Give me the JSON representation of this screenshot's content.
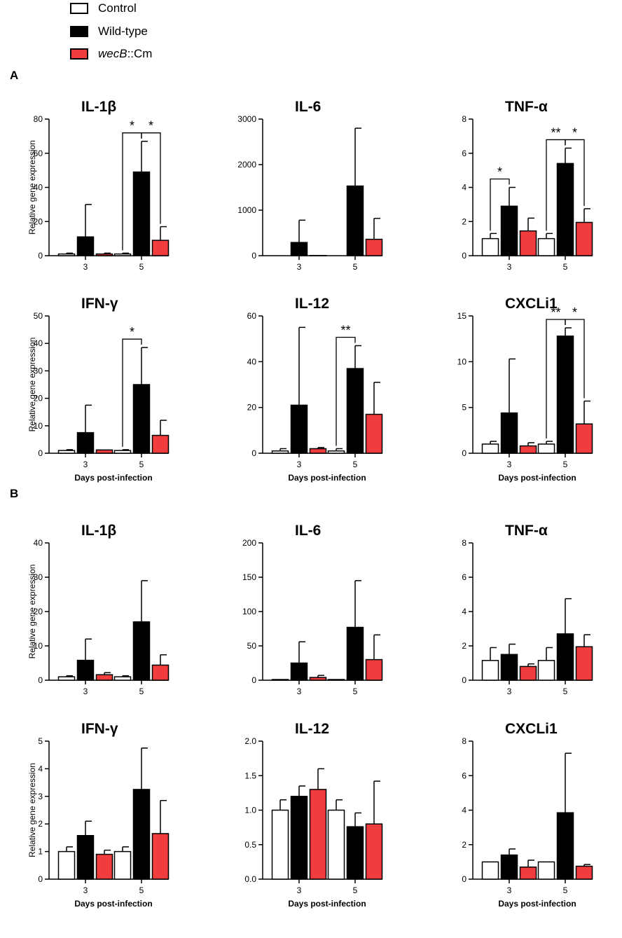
{
  "figure": {
    "legend": {
      "items": [
        {
          "label": "Control",
          "color": "#ffffff"
        },
        {
          "label": "Wild-type",
          "color": "#000000"
        },
        {
          "label_italic": "wecB",
          "label_rest": "::Cm",
          "color": "#f03c3c"
        }
      ]
    },
    "panels": {
      "a": "A",
      "b": "B"
    },
    "ylabel": "Relative gene expression",
    "xlabel": "Days post-infection",
    "groups": [
      "3",
      "5"
    ],
    "series_names": [
      "Control",
      "Wild-type",
      "wecB::Cm"
    ],
    "series_colors": [
      "#ffffff",
      "#000000",
      "#f03c3c"
    ]
  },
  "chart_data": [
    {
      "type": "bar",
      "panel": "A",
      "title": "IL-1β",
      "categories": [
        "3",
        "5"
      ],
      "series": [
        {
          "name": "Control",
          "values": [
            1,
            1
          ],
          "err": [
            0.5,
            0.5
          ]
        },
        {
          "name": "Wild-type",
          "values": [
            11,
            49
          ],
          "err": [
            19,
            18
          ]
        },
        {
          "name": "wecB::Cm",
          "values": [
            1,
            9
          ],
          "err": [
            0.5,
            8
          ]
        }
      ],
      "ylim": [
        0,
        80
      ],
      "yticks": [
        "0",
        "20",
        "40",
        "60",
        "80"
      ],
      "ylabel": "Relative gene expression",
      "xlabel": "",
      "significance": [
        {
          "group": 1,
          "pair": [
            0,
            1
          ],
          "label": "*"
        },
        {
          "group": 1,
          "pair": [
            1,
            2
          ],
          "label": "*"
        }
      ]
    },
    {
      "type": "bar",
      "panel": "A",
      "title": "IL-6",
      "categories": [
        "3",
        "5"
      ],
      "series": [
        {
          "name": "Control",
          "values": [
            0,
            0
          ],
          "err": [
            0,
            0
          ]
        },
        {
          "name": "Wild-type",
          "values": [
            290,
            1530
          ],
          "err": [
            490,
            1270
          ]
        },
        {
          "name": "wecB::Cm",
          "values": [
            5,
            360
          ],
          "err": [
            0,
            460
          ]
        }
      ],
      "ylim": [
        0,
        3000
      ],
      "yticks": [
        "0",
        "1000",
        "2000",
        "3000"
      ],
      "ylabel": "",
      "xlabel": "",
      "significance": []
    },
    {
      "type": "bar",
      "panel": "A",
      "title": "TNF-α",
      "categories": [
        "3",
        "5"
      ],
      "series": [
        {
          "name": "Control",
          "values": [
            1,
            1
          ],
          "err": [
            0.3,
            0.3
          ]
        },
        {
          "name": "Wild-type",
          "values": [
            2.9,
            5.4
          ],
          "err": [
            1.1,
            0.9
          ]
        },
        {
          "name": "wecB::Cm",
          "values": [
            1.45,
            1.95
          ],
          "err": [
            0.75,
            0.8
          ]
        }
      ],
      "ylim": [
        0,
        8
      ],
      "yticks": [
        "0",
        "2",
        "4",
        "6",
        "8"
      ],
      "ylabel": "",
      "xlabel": "",
      "significance": [
        {
          "group": 0,
          "pair": [
            0,
            1
          ],
          "label": "*"
        },
        {
          "group": 1,
          "pair": [
            0,
            1
          ],
          "label": "**"
        },
        {
          "group": 1,
          "pair": [
            1,
            2
          ],
          "label": "*"
        }
      ]
    },
    {
      "type": "bar",
      "panel": "A",
      "title": "IFN-γ",
      "categories": [
        "3",
        "5"
      ],
      "series": [
        {
          "name": "Control",
          "values": [
            1,
            1
          ],
          "err": [
            0.3,
            0.3
          ]
        },
        {
          "name": "Wild-type",
          "values": [
            7.5,
            25
          ],
          "err": [
            10,
            13.5
          ]
        },
        {
          "name": "wecB::Cm",
          "values": [
            1.2,
            6.5
          ],
          "err": [
            0,
            5.5
          ]
        }
      ],
      "ylim": [
        0,
        50
      ],
      "yticks": [
        "0",
        "10",
        "20",
        "30",
        "40",
        "50"
      ],
      "ylabel": "Relative gene expression",
      "xlabel": "Days post-infection",
      "significance": [
        {
          "group": 1,
          "pair": [
            0,
            1
          ],
          "label": "*"
        }
      ]
    },
    {
      "type": "bar",
      "panel": "A",
      "title": "IL-12",
      "categories": [
        "3",
        "5"
      ],
      "series": [
        {
          "name": "Control",
          "values": [
            1,
            1
          ],
          "err": [
            1,
            1
          ]
        },
        {
          "name": "Wild-type",
          "values": [
            21,
            37
          ],
          "err": [
            34,
            10
          ]
        },
        {
          "name": "wecB::Cm",
          "values": [
            2,
            17
          ],
          "err": [
            0.5,
            14
          ]
        }
      ],
      "ylim": [
        0,
        60
      ],
      "yticks": [
        "0",
        "20",
        "40",
        "60"
      ],
      "ylabel": "",
      "xlabel": "Days post-infection",
      "significance": [
        {
          "group": 1,
          "pair": [
            0,
            1
          ],
          "label": "**"
        }
      ]
    },
    {
      "type": "bar",
      "panel": "A",
      "title": "CXCLi1",
      "categories": [
        "3",
        "5"
      ],
      "series": [
        {
          "name": "Control",
          "values": [
            1,
            1
          ],
          "err": [
            0.3,
            0.3
          ]
        },
        {
          "name": "Wild-type",
          "values": [
            4.4,
            12.8
          ],
          "err": [
            5.9,
            0.9
          ]
        },
        {
          "name": "wecB::Cm",
          "values": [
            0.8,
            3.2
          ],
          "err": [
            0.35,
            2.5
          ]
        }
      ],
      "ylim": [
        0,
        15
      ],
      "yticks": [
        "0",
        "5",
        "10",
        "15"
      ],
      "ylabel": "",
      "xlabel": "Days post-infection",
      "significance": [
        {
          "group": 1,
          "pair": [
            0,
            1
          ],
          "label": "**"
        },
        {
          "group": 1,
          "pair": [
            1,
            2
          ],
          "label": "*"
        }
      ]
    },
    {
      "type": "bar",
      "panel": "B",
      "title": "IL-1β",
      "categories": [
        "3",
        "5"
      ],
      "series": [
        {
          "name": "Control",
          "values": [
            1,
            1
          ],
          "err": [
            0.3,
            0.3
          ]
        },
        {
          "name": "Wild-type",
          "values": [
            5.8,
            17
          ],
          "err": [
            6.2,
            12
          ]
        },
        {
          "name": "wecB::Cm",
          "values": [
            1.6,
            4.4
          ],
          "err": [
            0.6,
            3
          ]
        }
      ],
      "ylim": [
        0,
        40
      ],
      "yticks": [
        "0",
        "10",
        "20",
        "30",
        "40"
      ],
      "ylabel": "Relative gene expression",
      "xlabel": "",
      "significance": []
    },
    {
      "type": "bar",
      "panel": "B",
      "title": "IL-6",
      "categories": [
        "3",
        "5"
      ],
      "series": [
        {
          "name": "Control",
          "values": [
            1,
            1
          ],
          "err": [
            0,
            0
          ]
        },
        {
          "name": "Wild-type",
          "values": [
            25,
            77
          ],
          "err": [
            31,
            68
          ]
        },
        {
          "name": "wecB::Cm",
          "values": [
            4,
            30
          ],
          "err": [
            3,
            36
          ]
        }
      ],
      "ylim": [
        0,
        200
      ],
      "yticks": [
        "0",
        "50",
        "100",
        "150",
        "200"
      ],
      "ylabel": "",
      "xlabel": "",
      "significance": []
    },
    {
      "type": "bar",
      "panel": "B",
      "title": "TNF-α",
      "categories": [
        "3",
        "5"
      ],
      "series": [
        {
          "name": "Control",
          "values": [
            1.15,
            1.15
          ],
          "err": [
            0.75,
            0.75
          ]
        },
        {
          "name": "Wild-type",
          "values": [
            1.5,
            2.7
          ],
          "err": [
            0.6,
            2.05
          ]
        },
        {
          "name": "wecB::Cm",
          "values": [
            0.8,
            1.95
          ],
          "err": [
            0.15,
            0.7
          ]
        }
      ],
      "ylim": [
        0,
        8
      ],
      "yticks": [
        "0",
        "2",
        "4",
        "6",
        "8"
      ],
      "ylabel": "",
      "xlabel": "",
      "significance": []
    },
    {
      "type": "bar",
      "panel": "B",
      "title": "IFN-γ",
      "categories": [
        "3",
        "5"
      ],
      "series": [
        {
          "name": "Control",
          "values": [
            1,
            1
          ],
          "err": [
            0.17,
            0.17
          ]
        },
        {
          "name": "Wild-type",
          "values": [
            1.58,
            3.25
          ],
          "err": [
            0.52,
            1.5
          ]
        },
        {
          "name": "wecB::Cm",
          "values": [
            0.9,
            1.65
          ],
          "err": [
            0.15,
            1.2
          ]
        }
      ],
      "ylim": [
        0,
        5
      ],
      "yticks": [
        "0",
        "1",
        "2",
        "3",
        "4",
        "5"
      ],
      "ylabel": "Relative gene expression",
      "xlabel": "Days post-infection",
      "significance": []
    },
    {
      "type": "bar",
      "panel": "B",
      "title": "IL-12",
      "categories": [
        "3",
        "5"
      ],
      "series": [
        {
          "name": "Control",
          "values": [
            1,
            1
          ],
          "err": [
            0.15,
            0.15
          ]
        },
        {
          "name": "Wild-type",
          "values": [
            1.2,
            0.76
          ],
          "err": [
            0.15,
            0.2
          ]
        },
        {
          "name": "wecB::Cm",
          "values": [
            1.3,
            0.8
          ],
          "err": [
            0.3,
            0.62
          ]
        }
      ],
      "ylim": [
        0,
        2
      ],
      "yticks": [
        "0.0",
        "0.5",
        "1.0",
        "1.5",
        "2.0"
      ],
      "ylabel": "",
      "xlabel": "Days post-infection",
      "significance": []
    },
    {
      "type": "bar",
      "panel": "B",
      "title": "CXCLi1",
      "categories": [
        "3",
        "5"
      ],
      "series": [
        {
          "name": "Control",
          "values": [
            1,
            1
          ],
          "err": [
            0,
            0
          ]
        },
        {
          "name": "Wild-type",
          "values": [
            1.4,
            3.85
          ],
          "err": [
            0.35,
            3.45
          ]
        },
        {
          "name": "wecB::Cm",
          "values": [
            0.7,
            0.75
          ],
          "err": [
            0.4,
            0.1
          ]
        }
      ],
      "ylim": [
        0,
        8
      ],
      "yticks": [
        "0",
        "2",
        "4",
        "6",
        "8"
      ],
      "ylabel": "",
      "xlabel": "Days post-infection",
      "significance": []
    }
  ]
}
